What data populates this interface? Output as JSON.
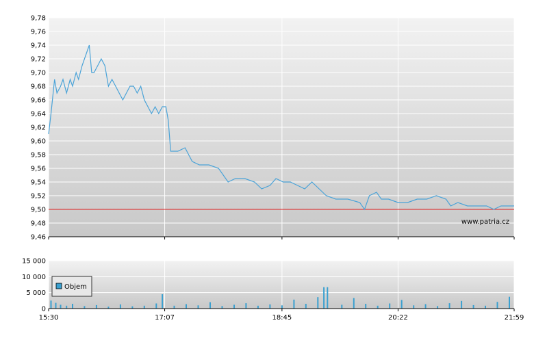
{
  "watermark": "www.patria.cz",
  "colors": {
    "line": "#4aa3d8",
    "reference": "#e02020",
    "volume": "#3aa0d0",
    "grid": "#ffffff"
  },
  "chart_data": [
    {
      "type": "line",
      "title": "",
      "xlabel": "",
      "ylabel": "",
      "ylim": [
        9.46,
        9.78
      ],
      "y_ticks": [
        "9,46",
        "9,48",
        "9,50",
        "9,52",
        "9,54",
        "9,56",
        "9,58",
        "9,60",
        "9,62",
        "9,64",
        "9,66",
        "9,68",
        "9,70",
        "9,72",
        "9,74",
        "9,76",
        "9,78"
      ],
      "x_ticks": [
        "15:30",
        "17:07",
        "18:45",
        "20:22",
        "21:59"
      ],
      "reference_line": 9.5,
      "grid": true,
      "series": [
        {
          "name": "",
          "points": [
            [
              "15:30",
              9.61
            ],
            [
              "15:32",
              9.64
            ],
            [
              "15:35",
              9.69
            ],
            [
              "15:37",
              9.67
            ],
            [
              "15:40",
              9.68
            ],
            [
              "15:42",
              9.69
            ],
            [
              "15:45",
              9.67
            ],
            [
              "15:48",
              9.69
            ],
            [
              "15:50",
              9.68
            ],
            [
              "15:53",
              9.7
            ],
            [
              "15:55",
              9.69
            ],
            [
              "15:58",
              9.71
            ],
            [
              "16:00",
              9.72
            ],
            [
              "16:02",
              9.73
            ],
            [
              "16:04",
              9.74
            ],
            [
              "16:06",
              9.7
            ],
            [
              "16:08",
              9.7
            ],
            [
              "16:11",
              9.71
            ],
            [
              "16:14",
              9.72
            ],
            [
              "16:17",
              9.71
            ],
            [
              "16:20",
              9.68
            ],
            [
              "16:23",
              9.69
            ],
            [
              "16:26",
              9.68
            ],
            [
              "16:29",
              9.67
            ],
            [
              "16:32",
              9.66
            ],
            [
              "16:35",
              9.67
            ],
            [
              "16:38",
              9.68
            ],
            [
              "16:41",
              9.68
            ],
            [
              "16:44",
              9.67
            ],
            [
              "16:47",
              9.68
            ],
            [
              "16:50",
              9.66
            ],
            [
              "16:53",
              9.65
            ],
            [
              "16:56",
              9.64
            ],
            [
              "16:59",
              9.65
            ],
            [
              "17:02",
              9.64
            ],
            [
              "17:05",
              9.65
            ],
            [
              "17:08",
              9.65
            ],
            [
              "17:10",
              9.63
            ],
            [
              "17:12",
              9.585
            ],
            [
              "17:18",
              9.585
            ],
            [
              "17:24",
              9.59
            ],
            [
              "17:30",
              9.57
            ],
            [
              "17:36",
              9.565
            ],
            [
              "17:44",
              9.565
            ],
            [
              "17:52",
              9.56
            ],
            [
              "17:56",
              9.55
            ],
            [
              "18:00",
              9.54
            ],
            [
              "18:06",
              9.545
            ],
            [
              "18:14",
              9.545
            ],
            [
              "18:22",
              9.54
            ],
            [
              "18:28",
              9.53
            ],
            [
              "18:35",
              9.535
            ],
            [
              "18:40",
              9.545
            ],
            [
              "18:46",
              9.54
            ],
            [
              "18:52",
              9.54
            ],
            [
              "18:58",
              9.535
            ],
            [
              "19:04",
              9.53
            ],
            [
              "19:10",
              9.54
            ],
            [
              "19:16",
              9.53
            ],
            [
              "19:22",
              9.52
            ],
            [
              "19:30",
              9.515
            ],
            [
              "19:40",
              9.515
            ],
            [
              "19:50",
              9.51
            ],
            [
              "19:54",
              9.5
            ],
            [
              "19:58",
              9.52
            ],
            [
              "20:04",
              9.525
            ],
            [
              "20:08",
              9.515
            ],
            [
              "20:14",
              9.515
            ],
            [
              "20:22",
              9.51
            ],
            [
              "20:30",
              9.51
            ],
            [
              "20:38",
              9.515
            ],
            [
              "20:46",
              9.515
            ],
            [
              "20:54",
              9.52
            ],
            [
              "21:02",
              9.515
            ],
            [
              "21:06",
              9.505
            ],
            [
              "21:12",
              9.51
            ],
            [
              "21:20",
              9.505
            ],
            [
              "21:28",
              9.505
            ],
            [
              "21:36",
              9.505
            ],
            [
              "21:42",
              9.5
            ],
            [
              "21:48",
              9.505
            ],
            [
              "21:54",
              9.505
            ],
            [
              "21:59",
              9.505
            ]
          ]
        }
      ]
    },
    {
      "type": "bar",
      "title": "",
      "xlabel": "",
      "ylabel": "",
      "ylim": [
        0,
        15000
      ],
      "y_ticks": [
        "0",
        "5 000",
        "10 000",
        "15 000"
      ],
      "x_ticks": [
        "15:30",
        "17:07",
        "18:45",
        "20:22",
        "21:59"
      ],
      "legend": {
        "entries": [
          "Objem"
        ],
        "placement": "top-left"
      },
      "grid": true,
      "series": [
        {
          "name": "Objem",
          "points": [
            [
              "15:32",
              2500
            ],
            [
              "15:36",
              1800
            ],
            [
              "15:40",
              1200
            ],
            [
              "15:45",
              900
            ],
            [
              "15:50",
              1500
            ],
            [
              "16:00",
              800
            ],
            [
              "16:10",
              1100
            ],
            [
              "16:20",
              600
            ],
            [
              "16:30",
              1300
            ],
            [
              "16:40",
              700
            ],
            [
              "16:50",
              900
            ],
            [
              "17:00",
              1600
            ],
            [
              "17:05",
              4500
            ],
            [
              "17:15",
              900
            ],
            [
              "17:25",
              1400
            ],
            [
              "17:35",
              1000
            ],
            [
              "17:45",
              2000
            ],
            [
              "17:55",
              800
            ],
            [
              "18:05",
              1200
            ],
            [
              "18:15",
              1700
            ],
            [
              "18:25",
              900
            ],
            [
              "18:35",
              1300
            ],
            [
              "18:45",
              1000
            ],
            [
              "18:55",
              2800
            ],
            [
              "19:05",
              1500
            ],
            [
              "19:15",
              3600
            ],
            [
              "19:20",
              6700
            ],
            [
              "19:23",
              6700
            ],
            [
              "19:35",
              1200
            ],
            [
              "19:45",
              3300
            ],
            [
              "19:55",
              1500
            ],
            [
              "20:05",
              900
            ],
            [
              "20:15",
              1600
            ],
            [
              "20:25",
              2700
            ],
            [
              "20:35",
              1000
            ],
            [
              "20:45",
              1400
            ],
            [
              "20:55",
              800
            ],
            [
              "21:05",
              1700
            ],
            [
              "21:15",
              2400
            ],
            [
              "21:25",
              1100
            ],
            [
              "21:35",
              900
            ],
            [
              "21:45",
              2100
            ],
            [
              "21:55",
              3700
            ]
          ]
        }
      ]
    }
  ]
}
